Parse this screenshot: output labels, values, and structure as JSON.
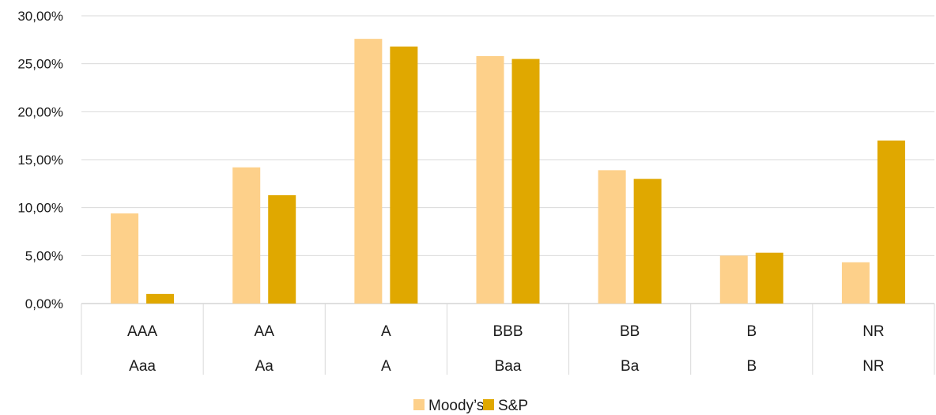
{
  "chart_data": {
    "type": "bar",
    "categories": [
      {
        "sp": "AAA",
        "moodys": "Aaa"
      },
      {
        "sp": "AA",
        "moodys": "Aa"
      },
      {
        "sp": "A",
        "moodys": "A"
      },
      {
        "sp": "BBB",
        "moodys": "Baa"
      },
      {
        "sp": "BB",
        "moodys": "Ba"
      },
      {
        "sp": "B",
        "moodys": "B"
      },
      {
        "sp": "NR",
        "moodys": "NR"
      }
    ],
    "series": [
      {
        "name": "Moody’s",
        "color": "#FDD08A",
        "values": [
          9.4,
          14.2,
          27.6,
          25.8,
          13.9,
          5.0,
          4.3
        ]
      },
      {
        "name": "S&P",
        "color": "#E0A800",
        "values": [
          1.0,
          11.3,
          26.8,
          25.5,
          13.0,
          5.3,
          17.0
        ]
      }
    ],
    "ylim": [
      0,
      30
    ],
    "yticks": [
      "0,00%",
      "5,00%",
      "10,00%",
      "15,00%",
      "20,00%",
      "25,00%",
      "30,00%"
    ],
    "grid": true,
    "legend": "bottom",
    "title": "",
    "xlabel": "",
    "ylabel": ""
  }
}
